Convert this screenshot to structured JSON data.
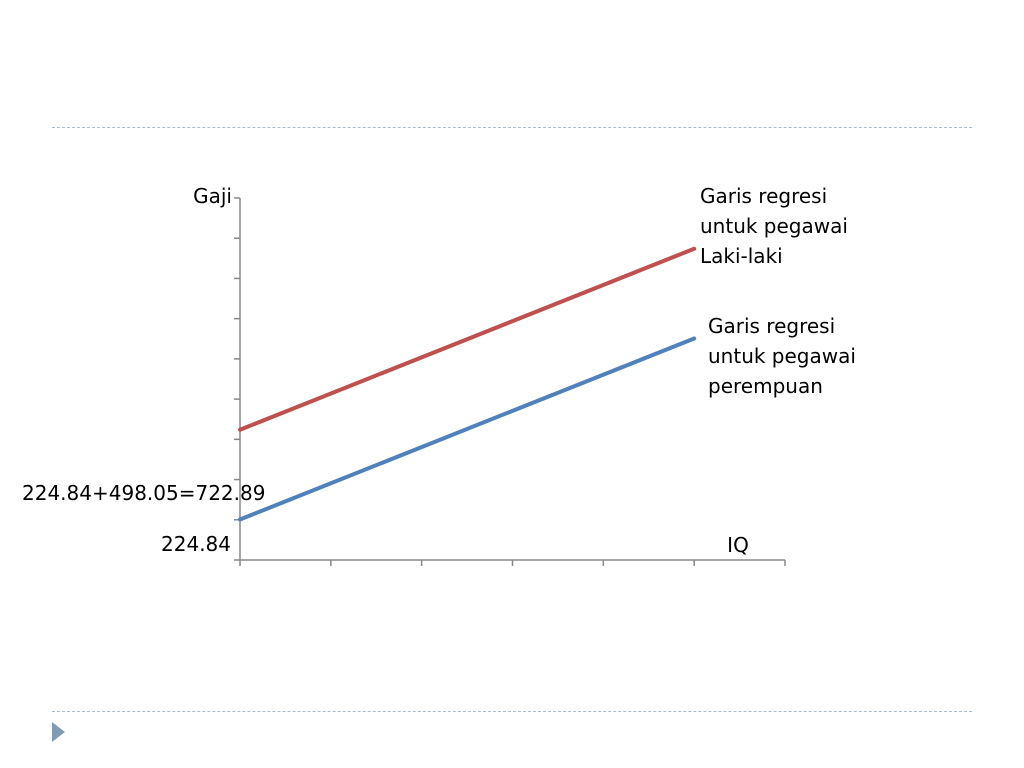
{
  "chart_data": {
    "type": "line",
    "xlabel": "IQ",
    "ylabel": "Gaji",
    "y_tick_labels": [
      "224.84",
      "224.84+498.05=722.89"
    ],
    "series": [
      {
        "name": "Garis regresi untuk pegawai Laki-laki",
        "label_lines": [
          "Garis regresi",
          "untuk pegawai",
          "Laki-laki"
        ],
        "color": "#c0504d",
        "x": [
          0,
          5
        ],
        "y": [
          722.89,
          1727.39
        ]
      },
      {
        "name": "Garis regresi untuk pegawai perempuan",
        "label_lines": [
          "Garis regresi",
          "untuk pegawai",
          "perempuan"
        ],
        "color": "#4f81bd",
        "x": [
          0,
          5
        ],
        "y": [
          224.84,
          1229.34
        ]
      }
    ],
    "xlim": [
      0,
      6
    ],
    "ylim": [
      0,
      2009
    ],
    "x_ticks": 7,
    "y_ticks": 10,
    "grid": false,
    "colors": {
      "axis": "#888888",
      "rule": "#a9bccb",
      "bullet": "#7f9bb5"
    }
  }
}
